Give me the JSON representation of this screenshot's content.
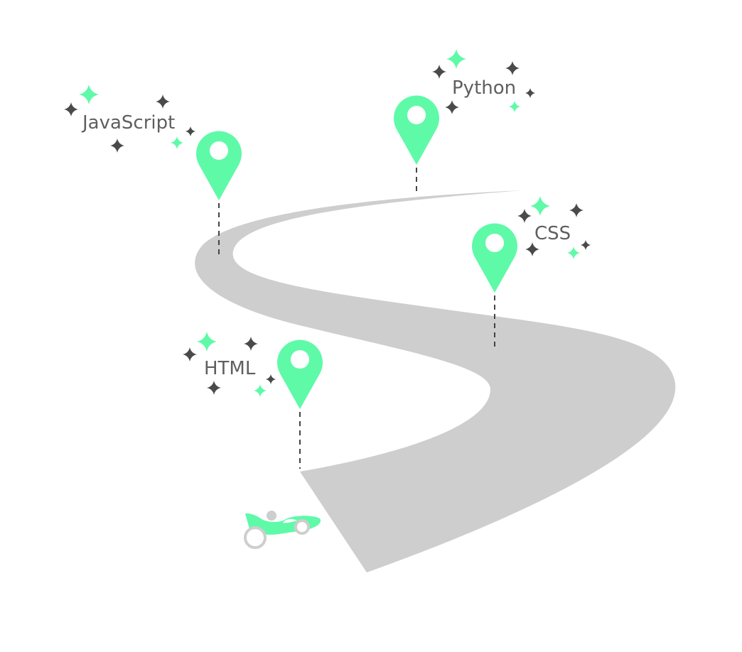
{
  "colors": {
    "accent": "#5efaa8",
    "road": "#cecece",
    "text": "#5f5f5f",
    "sparkle_dark": "#4a4a4a",
    "dash": "#444444",
    "wheel": "#cecece"
  },
  "milestones": [
    {
      "id": "html",
      "label": "HTML"
    },
    {
      "id": "css",
      "label": "CSS"
    },
    {
      "id": "javascript",
      "label": "JavaScript"
    },
    {
      "id": "python",
      "label": "Python"
    }
  ],
  "icons": {
    "pin": "map-pin-icon",
    "sparkle": "sparkle-icon",
    "vehicle": "race-car-icon"
  }
}
